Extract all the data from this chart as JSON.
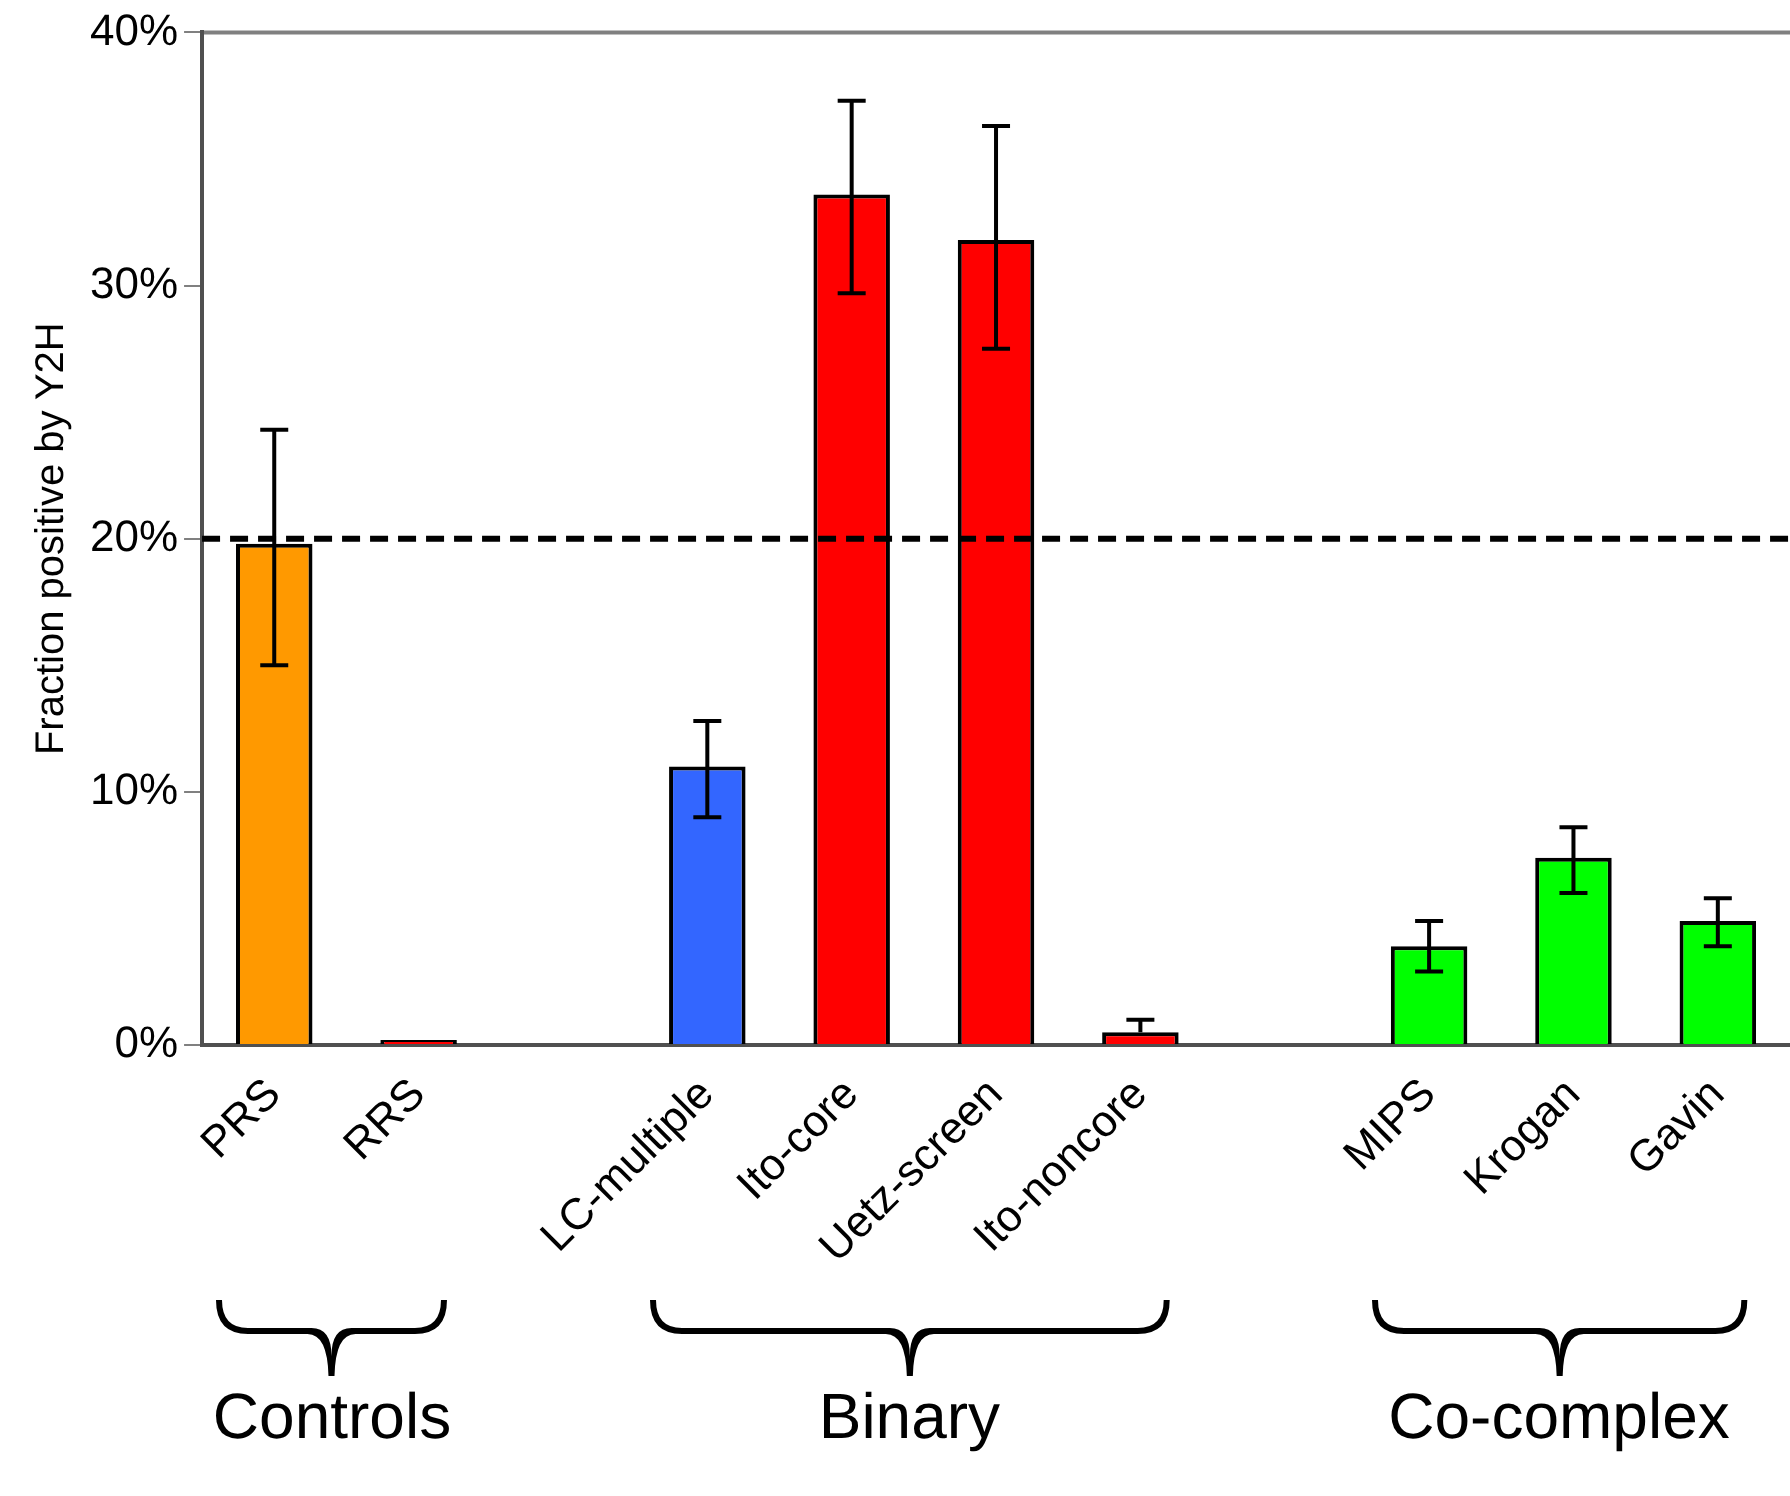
{
  "chart_data": {
    "type": "bar",
    "ylabel": "Fraction positive by Y2H",
    "categories": [
      "PRS",
      "RRS",
      null,
      "LC-multiple",
      "Ito-core",
      "Uetz-screen",
      "Ito-noncore",
      null,
      "MIPS",
      "Krogan",
      "Gavin"
    ],
    "values": [
      19.8,
      0.2,
      null,
      11.0,
      33.6,
      31.8,
      0.5,
      null,
      3.9,
      7.4,
      4.9
    ],
    "colors": [
      "#ff9900",
      "#ff0000",
      null,
      "#3366ff",
      "#ff0000",
      "#ff0000",
      "#ff0000",
      null,
      "#00ff00",
      "#00ff00",
      "#00ff00"
    ],
    "errors": [
      [
        15.0,
        24.3
      ],
      null,
      null,
      [
        9.0,
        12.8
      ],
      [
        29.7,
        37.3
      ],
      [
        27.5,
        36.3
      ],
      [
        0.5,
        1.0
      ],
      null,
      [
        2.9,
        4.9
      ],
      [
        6.0,
        8.6
      ],
      [
        3.9,
        5.8
      ]
    ],
    "ylim": [
      0,
      40
    ],
    "yticks": [
      {
        "value": 0,
        "label": "0%"
      },
      {
        "value": 10,
        "label": "10%"
      },
      {
        "value": 20,
        "label": "20%"
      },
      {
        "value": 30,
        "label": "30%"
      },
      {
        "value": 40,
        "label": "40%"
      }
    ],
    "ref_lines": [
      {
        "axis": "y",
        "value": 20,
        "color": "#000000",
        "line_style": "dashed"
      }
    ],
    "grid": false,
    "legend": false,
    "annotations": [
      "Controls",
      "Binary",
      "Co-complex"
    ]
  }
}
